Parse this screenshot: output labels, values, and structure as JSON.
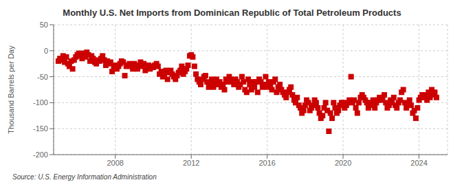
{
  "chart_data": {
    "type": "scatter",
    "title": "Monthly U.S. Net Imports from Dominican Republic of Total Petroleum Products",
    "y_label": "Thousand Barrels per Day",
    "annotations": [
      "Source: U.S. Energy Information Administration"
    ],
    "color": "#cc0000",
    "marker": "square",
    "grid": true,
    "xlim": [
      2004.75,
      2025.5
    ],
    "xticks": [
      2008,
      2012,
      2016,
      2020,
      2024
    ],
    "ylim": [
      -200,
      50
    ],
    "yticks": [
      -200,
      -150,
      -100,
      -50,
      0,
      50
    ],
    "x": [
      2005.0,
      2005.08,
      2005.17,
      2005.25,
      2005.33,
      2005.42,
      2005.5,
      2005.58,
      2005.67,
      2005.75,
      2005.83,
      2005.92,
      2006.0,
      2006.08,
      2006.17,
      2006.25,
      2006.33,
      2006.42,
      2006.5,
      2006.58,
      2006.67,
      2006.75,
      2006.83,
      2006.92,
      2007.0,
      2007.08,
      2007.17,
      2007.25,
      2007.33,
      2007.42,
      2007.5,
      2007.58,
      2007.67,
      2007.75,
      2007.83,
      2007.92,
      2008.0,
      2008.08,
      2008.17,
      2008.25,
      2008.33,
      2008.42,
      2008.5,
      2008.58,
      2008.67,
      2008.75,
      2008.83,
      2008.92,
      2009.0,
      2009.08,
      2009.17,
      2009.25,
      2009.33,
      2009.42,
      2009.5,
      2009.58,
      2009.67,
      2009.75,
      2009.83,
      2009.92,
      2010.0,
      2010.08,
      2010.17,
      2010.25,
      2010.33,
      2010.42,
      2010.5,
      2010.58,
      2010.67,
      2010.75,
      2010.83,
      2010.92,
      2011.0,
      2011.08,
      2011.17,
      2011.25,
      2011.33,
      2011.42,
      2011.5,
      2011.58,
      2011.67,
      2011.75,
      2011.83,
      2011.92,
      2012.0,
      2012.08,
      2012.17,
      2012.25,
      2012.33,
      2012.42,
      2012.5,
      2012.58,
      2012.67,
      2012.75,
      2012.83,
      2012.92,
      2013.0,
      2013.08,
      2013.17,
      2013.25,
      2013.33,
      2013.42,
      2013.5,
      2013.58,
      2013.67,
      2013.75,
      2013.83,
      2013.92,
      2014.0,
      2014.08,
      2014.17,
      2014.25,
      2014.33,
      2014.42,
      2014.5,
      2014.58,
      2014.67,
      2014.75,
      2014.83,
      2014.92,
      2015.0,
      2015.08,
      2015.17,
      2015.25,
      2015.33,
      2015.42,
      2015.5,
      2015.58,
      2015.67,
      2015.75,
      2015.83,
      2015.92,
      2016.0,
      2016.08,
      2016.17,
      2016.25,
      2016.33,
      2016.42,
      2016.5,
      2016.58,
      2016.67,
      2016.75,
      2016.83,
      2016.92,
      2017.0,
      2017.08,
      2017.17,
      2017.25,
      2017.33,
      2017.42,
      2017.5,
      2017.58,
      2017.67,
      2017.75,
      2017.83,
      2017.92,
      2018.0,
      2018.08,
      2018.17,
      2018.25,
      2018.33,
      2018.42,
      2018.5,
      2018.58,
      2018.67,
      2018.75,
      2018.83,
      2018.92,
      2019.0,
      2019.08,
      2019.17,
      2019.25,
      2019.33,
      2019.42,
      2019.5,
      2019.58,
      2019.67,
      2019.75,
      2019.83,
      2019.92,
      2020.0,
      2020.08,
      2020.17,
      2020.25,
      2020.33,
      2020.42,
      2020.5,
      2020.58,
      2020.67,
      2020.75,
      2020.83,
      2020.92,
      2021.0,
      2021.08,
      2021.17,
      2021.25,
      2021.33,
      2021.42,
      2021.5,
      2021.58,
      2021.67,
      2021.75,
      2021.83,
      2021.92,
      2022.0,
      2022.08,
      2022.17,
      2022.25,
      2022.33,
      2022.42,
      2022.5,
      2022.58,
      2022.67,
      2022.75,
      2022.83,
      2022.92,
      2023.0,
      2023.08,
      2023.17,
      2023.25,
      2023.33,
      2023.42,
      2023.5,
      2023.58,
      2023.67,
      2023.75,
      2023.83,
      2023.92,
      2024.0,
      2024.08,
      2024.17,
      2024.25,
      2024.33,
      2024.42,
      2024.5,
      2024.58,
      2024.67,
      2024.75,
      2024.83,
      2024.92
    ],
    "values": [
      -20,
      -15,
      -18,
      -10,
      -22,
      -12,
      -25,
      -30,
      -20,
      -35,
      -18,
      -12,
      -8,
      -5,
      -10,
      -15,
      -5,
      -12,
      -3,
      -8,
      -20,
      -10,
      -15,
      -22,
      -25,
      -18,
      -20,
      -15,
      -10,
      -18,
      -28,
      -20,
      -25,
      -22,
      -40,
      -30,
      -28,
      -35,
      -30,
      -25,
      -20,
      -22,
      -48,
      -30,
      -28,
      -25,
      -30,
      -35,
      -25,
      -30,
      -35,
      -28,
      -22,
      -30,
      -25,
      -38,
      -32,
      -28,
      -35,
      -30,
      -32,
      -28,
      -25,
      -30,
      -45,
      -40,
      -50,
      -48,
      -38,
      -55,
      -42,
      -38,
      -45,
      -50,
      -55,
      -48,
      -42,
      -38,
      -30,
      -45,
      -40,
      -35,
      -28,
      -10,
      -8,
      -12,
      -30,
      -45,
      -55,
      -60,
      -65,
      -55,
      -50,
      -48,
      -60,
      -70,
      -65,
      -55,
      -70,
      -60,
      -55,
      -65,
      -60,
      -70,
      -65,
      -75,
      -55,
      -60,
      -50,
      -55,
      -60,
      -65,
      -55,
      -60,
      -70,
      -65,
      -50,
      -60,
      -75,
      -80,
      -55,
      -65,
      -75,
      -60,
      -70,
      -60,
      -80,
      -55,
      -60,
      -70,
      -65,
      -50,
      -70,
      -60,
      -65,
      -75,
      -60,
      -55,
      -80,
      -70,
      -65,
      -75,
      -80,
      -85,
      -90,
      -80,
      -75,
      -70,
      -85,
      -95,
      -100,
      -90,
      -105,
      -110,
      -120,
      -115,
      -105,
      -95,
      -100,
      -115,
      -110,
      -105,
      -95,
      -100,
      -110,
      -120,
      -130,
      -125,
      -110,
      -100,
      -115,
      -155,
      -120,
      -130,
      -100,
      -110,
      -120,
      -115,
      -105,
      -100,
      -100,
      -110,
      -105,
      -100,
      -95,
      -50,
      -100,
      -95,
      -110,
      -120,
      -100,
      -90,
      -85,
      -90,
      -95,
      -100,
      -110,
      -100,
      -105,
      -95,
      -110,
      -100,
      -95,
      -90,
      -95,
      -90,
      -85,
      -100,
      -110,
      -105,
      -95,
      -100,
      -90,
      -105,
      -110,
      -100,
      -95,
      -80,
      -75,
      -100,
      -110,
      -105,
      -95,
      -105,
      -120,
      -115,
      -130,
      -110,
      -95,
      -90,
      -85,
      -90,
      -85,
      -95,
      -80,
      -90,
      -75,
      -85,
      -80,
      -90
    ]
  }
}
